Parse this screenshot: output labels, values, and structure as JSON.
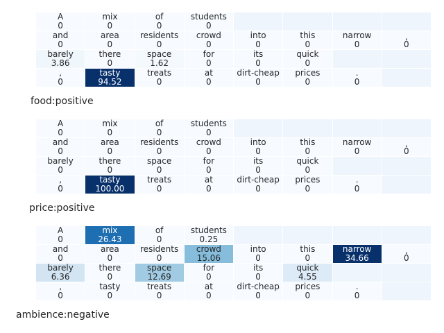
{
  "chart_data": [
    {
      "type": "heatmap",
      "title": "food:positive",
      "rows": [
        {
          "words": [
            "A",
            "mix",
            "of",
            "students",
            "",
            "",
            "",
            ""
          ],
          "values": [
            0,
            0,
            0,
            0,
            null,
            null,
            null,
            null
          ]
        },
        {
          "words": [
            "and",
            "area",
            "residents",
            "crowd",
            "into",
            "this",
            "narrow",
            ","
          ],
          "values": [
            0,
            0,
            0,
            0,
            0,
            0,
            0,
            0
          ]
        },
        {
          "words": [
            "barely",
            "there",
            "space",
            "for",
            "its",
            "quick",
            "",
            ""
          ],
          "values": [
            3.86,
            0,
            1.62,
            0,
            0,
            0,
            null,
            null
          ]
        },
        {
          "words": [
            ",",
            "tasty",
            "treats",
            "at",
            "dirt-cheap",
            "prices",
            ".",
            ""
          ],
          "values": [
            0,
            94.52,
            0,
            0,
            0,
            0,
            0,
            null
          ]
        }
      ]
    },
    {
      "type": "heatmap",
      "title": "price:positive",
      "rows": [
        {
          "words": [
            "A",
            "mix",
            "of",
            "students",
            "",
            "",
            "",
            ""
          ],
          "values": [
            0,
            0,
            0,
            0,
            null,
            null,
            null,
            null
          ]
        },
        {
          "words": [
            "and",
            "area",
            "residents",
            "crowd",
            "into",
            "this",
            "narrow",
            ","
          ],
          "values": [
            0,
            0,
            0,
            0,
            0,
            0,
            0,
            0
          ]
        },
        {
          "words": [
            "barely",
            "there",
            "space",
            "for",
            "its",
            "quick",
            "",
            ""
          ],
          "values": [
            0,
            0,
            0,
            0,
            0,
            0,
            null,
            null
          ]
        },
        {
          "words": [
            ",",
            "tasty",
            "treats",
            "at",
            "dirt-cheap",
            "prices",
            ".",
            ""
          ],
          "values": [
            0,
            "100.00",
            0,
            0,
            0,
            0,
            0,
            null
          ]
        }
      ]
    },
    {
      "type": "heatmap",
      "title": "ambience:negative",
      "rows": [
        {
          "words": [
            "A",
            "mix",
            "of",
            "students",
            "",
            "",
            "",
            ""
          ],
          "values": [
            0,
            26.43,
            0,
            0.25,
            null,
            null,
            null,
            null
          ]
        },
        {
          "words": [
            "and",
            "area",
            "residents",
            "crowd",
            "into",
            "this",
            "narrow",
            ","
          ],
          "values": [
            0,
            0,
            0,
            15.06,
            0,
            0,
            34.66,
            0
          ]
        },
        {
          "words": [
            "barely",
            "there",
            "space",
            "for",
            "its",
            "quick",
            "",
            ""
          ],
          "values": [
            6.36,
            0,
            12.69,
            0,
            0,
            4.55,
            null,
            null
          ]
        },
        {
          "words": [
            ",",
            "tasty",
            "treats",
            "at",
            "dirt-cheap",
            "prices",
            ".",
            ""
          ],
          "values": [
            0,
            0,
            0,
            0,
            0,
            0,
            0,
            null
          ]
        }
      ]
    }
  ],
  "colors": {
    "empty": "#eef5fc",
    "scale_low": "#f7fbff",
    "scale_high": "#08306b"
  }
}
